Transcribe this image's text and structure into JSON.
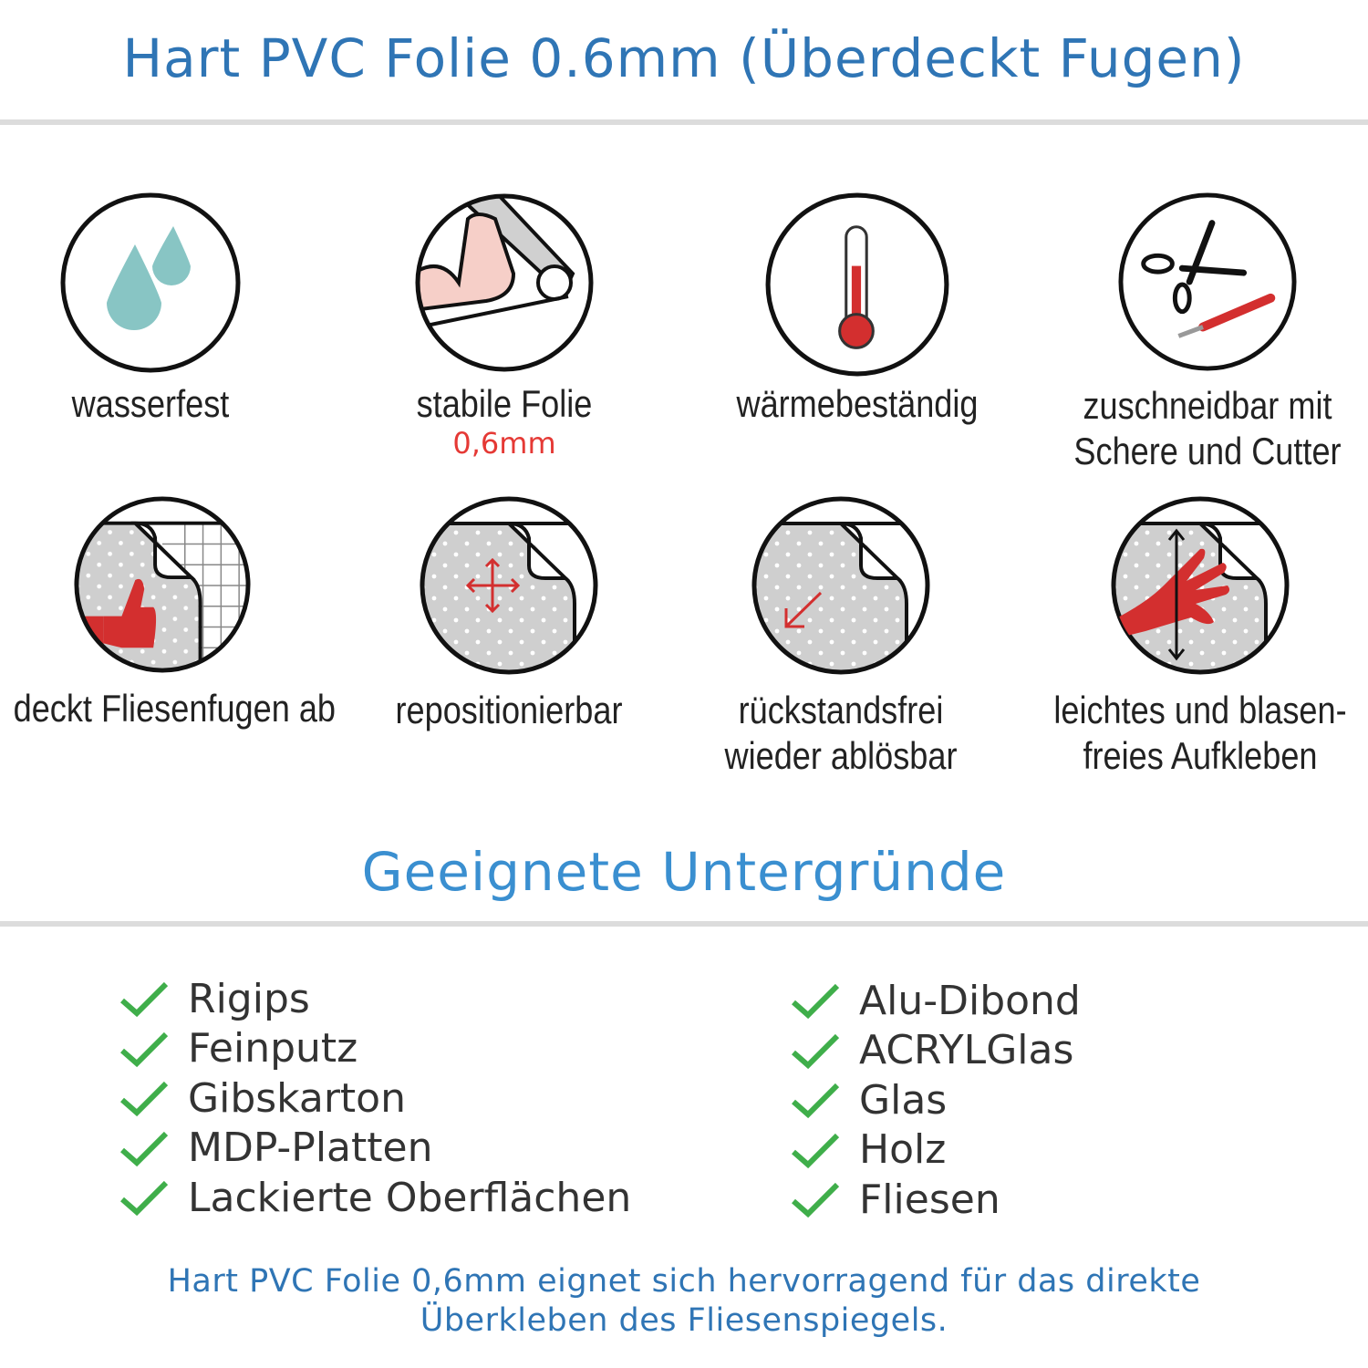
{
  "header": {
    "title": "Hart PVC Folie 0.6mm (Überdeckt Fugen)"
  },
  "features": [
    {
      "icon": "water-drops-icon",
      "line1": "wasserfest"
    },
    {
      "icon": "flexed-arm-roll-icon",
      "line1": "stabile Folie",
      "sub": "0,6mm"
    },
    {
      "icon": "thermometer-icon",
      "line1": "wärmebeständig"
    },
    {
      "icon": "scissors-cutter-icon",
      "line1": "zuschneidbar mit",
      "line2": "Schere und Cutter"
    },
    {
      "icon": "thumbs-up-tiles-icon",
      "line1": "deckt Fliesenfugen ab"
    },
    {
      "icon": "move-arrows-icon",
      "line1": "repositionierbar"
    },
    {
      "icon": "peel-arrow-icon",
      "line1": "rückstandsfrei",
      "line2": "wieder ablösbar"
    },
    {
      "icon": "hand-smoothing-icon",
      "line1": "leichtes und blasen-",
      "line2": "freies Aufkleben"
    }
  ],
  "section": {
    "title": "Geeignete Untergründe"
  },
  "surfaces": {
    "left": [
      "Rigips",
      "Feinputz",
      "Gibskarton",
      "MDP-Platten",
      "Lackierte Oberflächen"
    ],
    "right": [
      "Alu-Dibond",
      "ACRYLGlas",
      "Glas",
      "Holz",
      "Fliesen"
    ]
  },
  "footer": {
    "line1": "Hart PVC Folie 0,6mm eignet sich hervorragend für das direkte",
    "line2": "Überkleben des Fliesenspiegels."
  },
  "colors": {
    "title": "#2f75b5",
    "section": "#3a8fd0",
    "accent_red": "#e53935",
    "check": "#3fae4a",
    "drop": "#88c5c4"
  }
}
